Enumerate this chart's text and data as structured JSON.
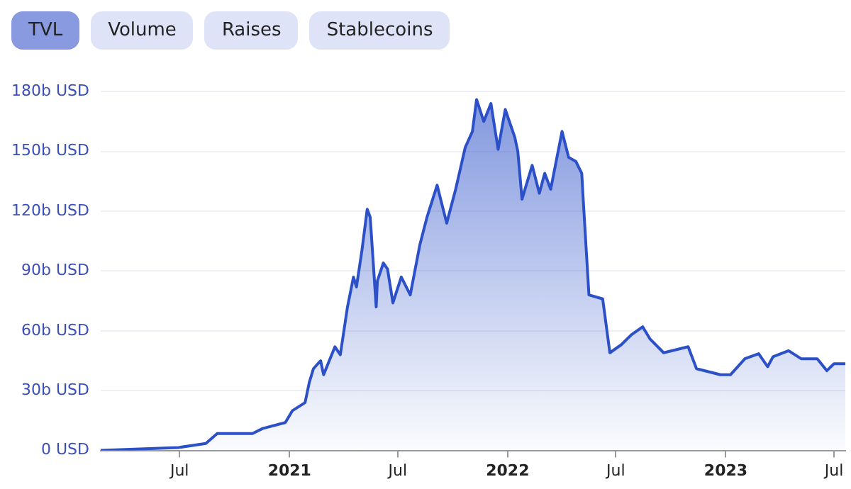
{
  "chart_data": {
    "type": "area",
    "annotations": [
      "TVL",
      "Volume",
      "Raises",
      "Stablecoins"
    ],
    "x": [
      "2020-02-20",
      "2020-06-30",
      "2020-08-14",
      "2020-09-02",
      "2020-09-30",
      "2020-10-31",
      "2020-11-17",
      "2020-12-25",
      "2021-01-06",
      "2021-01-27",
      "2021-02-03",
      "2021-02-10",
      "2021-02-22",
      "2021-02-27",
      "2021-03-18",
      "2021-03-27",
      "2021-04-08",
      "2021-04-18",
      "2021-04-23",
      "2021-05-02",
      "2021-05-11",
      "2021-05-16",
      "2021-05-26",
      "2021-05-28",
      "2021-06-07",
      "2021-06-14",
      "2021-06-23",
      "2021-07-07",
      "2021-07-22",
      "2021-08-07",
      "2021-08-19",
      "2021-09-05",
      "2021-09-21",
      "2021-10-06",
      "2021-10-22",
      "2021-11-03",
      "2021-11-10",
      "2021-11-22",
      "2021-12-04",
      "2021-12-16",
      "2021-12-28",
      "2022-01-13",
      "2022-01-18",
      "2022-01-25",
      "2022-02-11",
      "2022-02-23",
      "2022-03-04",
      "2022-03-14",
      "2022-04-02",
      "2022-04-13",
      "2022-04-25",
      "2022-05-05",
      "2022-05-07",
      "2022-05-17",
      "2022-06-09",
      "2022-06-21",
      "2022-07-10",
      "2022-07-27",
      "2022-08-15",
      "2022-08-27",
      "2022-09-19",
      "2022-10-30",
      "2022-11-13",
      "2022-12-23",
      "2023-01-09",
      "2023-02-02",
      "2023-02-25",
      "2023-03-12",
      "2023-03-21",
      "2023-04-16",
      "2023-05-07",
      "2023-06-03",
      "2023-06-19",
      "2023-07-01",
      "2023-07-20"
    ],
    "series": [
      {
        "color": "#2b50c8",
        "values": [
          0,
          1.5,
          3.5,
          8.5,
          8.5,
          8.5,
          11,
          14,
          20,
          24,
          34,
          41,
          45,
          38,
          52,
          48,
          72,
          87,
          82,
          100,
          121,
          117,
          72,
          85,
          94,
          91,
          74,
          87,
          78,
          103,
          117,
          133,
          114,
          131,
          152,
          160,
          176,
          165,
          174,
          151,
          171,
          157,
          150,
          126,
          143,
          129,
          139,
          131,
          160,
          147,
          145,
          139,
          128,
          78,
          76,
          49,
          53,
          58,
          62,
          56,
          49,
          52,
          41,
          38,
          38,
          46,
          48.5,
          42,
          47,
          50,
          46,
          46,
          40,
          43.5,
          43.5
        ]
      }
    ],
    "xlim": [
      "2020-02-20",
      "2023-07-20"
    ],
    "xticks": [
      {
        "value": "2020-07-01",
        "label": "Jul"
      },
      {
        "value": "2021-01-01",
        "label": "2021"
      },
      {
        "value": "2021-07-01",
        "label": "Jul"
      },
      {
        "value": "2022-01-01",
        "label": "2022"
      },
      {
        "value": "2022-07-01",
        "label": "Jul"
      },
      {
        "value": "2023-01-01",
        "label": "2023"
      },
      {
        "value": "2023-07-01",
        "label": "Jul"
      }
    ],
    "ylim": [
      0,
      180
    ],
    "yticks": [
      {
        "value": 0,
        "label": "0 USD"
      },
      {
        "value": 30,
        "label": "30b USD"
      },
      {
        "value": 60,
        "label": "60b USD"
      },
      {
        "value": 90,
        "label": "90b USD"
      },
      {
        "value": 120,
        "label": "120b USD"
      },
      {
        "value": 150,
        "label": "150b USD"
      },
      {
        "value": 180,
        "label": "180b USD"
      }
    ],
    "grid": "y",
    "legend": false,
    "marker": "none",
    "line_style": "solid"
  }
}
